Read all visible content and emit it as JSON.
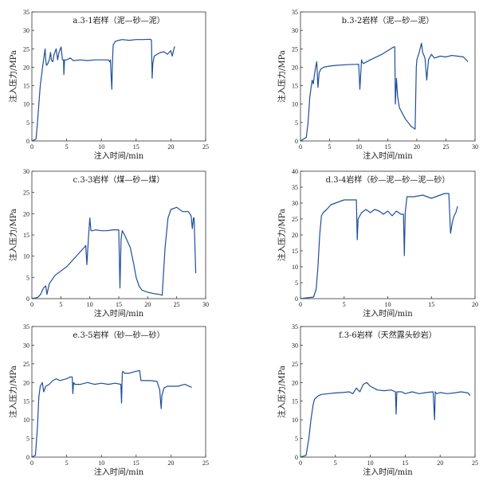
{
  "chart_data": [
    {
      "type": "line",
      "title": "a.3-1岩样（泥—砂—泥）",
      "xlabel": "注入时间/min",
      "ylabel": "注入压力/MPa",
      "xlim": [
        0,
        25
      ],
      "ylim": [
        0,
        35
      ],
      "xticks": [
        0,
        5,
        10,
        15,
        20,
        25
      ],
      "yticks": [
        0,
        5,
        10,
        15,
        20,
        25,
        30,
        35
      ],
      "series": [
        {
          "color": "#1f4e9a",
          "x": [
            0,
            0.6,
            0.8,
            1.2,
            1.6,
            1.9,
            2.0,
            2.1,
            2.3,
            2.5,
            2.7,
            2.8,
            3.0,
            3.2,
            3.5,
            3.7,
            3.9,
            4.2,
            4.4,
            4.55,
            4.6,
            4.7,
            5.0,
            5.5,
            6.0,
            7.0,
            8.0,
            9.0,
            10.0,
            11.0,
            11.2,
            11.3,
            11.5,
            11.6,
            11.7,
            12.0,
            12.5,
            13.0,
            14.0,
            15.0,
            16.0,
            17.0,
            17.2,
            17.3,
            17.4,
            17.6,
            18.0,
            18.5,
            19.0,
            19.5,
            20.0,
            20.2,
            20.5,
            20.6
          ],
          "y": [
            0,
            0.5,
            5,
            15,
            21,
            25,
            22,
            20.5,
            21,
            22,
            24,
            22,
            21.5,
            23.5,
            25,
            22,
            24,
            25.5,
            22,
            22,
            18,
            22,
            22,
            22.5,
            21.8,
            22,
            21.8,
            22,
            22,
            22,
            21.5,
            22,
            14,
            22,
            26,
            27,
            27.3,
            27.5,
            27.3,
            27.5,
            27.5,
            27.6,
            27.4,
            17,
            21,
            23,
            23.5,
            24,
            24.2,
            23.5,
            24.5,
            23,
            25.5,
            25.5
          ]
        }
      ]
    },
    {
      "type": "line",
      "title": "b.3-2岩样（泥—砂—泥）",
      "xlabel": "注入时间/min",
      "ylabel": "注入压力/MPa",
      "xlim": [
        0,
        30
      ],
      "ylim": [
        0,
        35
      ],
      "xticks": [
        0,
        5,
        10,
        15,
        20,
        25,
        30
      ],
      "yticks": [
        0,
        5,
        10,
        15,
        20,
        25,
        30,
        35
      ],
      "series": [
        {
          "color": "#1f4e9a",
          "x": [
            0,
            1.0,
            1.3,
            1.6,
            2.0,
            2.2,
            2.4,
            2.6,
            2.8,
            3.0,
            3.2,
            3.5,
            4.0,
            5.0,
            6.0,
            8.0,
            10.0,
            10.2,
            10.5,
            10.6,
            10.8,
            12.0,
            14.0,
            15.0,
            16.0,
            16.2,
            16.3,
            16.5,
            16.7,
            17.0,
            18.0,
            19.0,
            19.7,
            19.9,
            20.0,
            20.4,
            20.8,
            21.0,
            21.4,
            21.7,
            22.0,
            22.5,
            23.0,
            24.0,
            25.0,
            26.0,
            27.0,
            28.0,
            28.8
          ],
          "y": [
            0,
            1,
            5,
            12,
            16.5,
            15.5,
            18,
            20,
            21.5,
            14.5,
            18.5,
            19.5,
            20,
            20.3,
            20.5,
            20.7,
            20.8,
            14,
            22,
            21.5,
            21,
            22,
            23.5,
            24.5,
            25.5,
            25.5,
            10,
            17,
            12,
            9,
            6,
            4,
            3.2,
            20,
            22,
            24,
            26.5,
            24,
            22.5,
            16.5,
            22,
            23.5,
            22.5,
            23,
            22.8,
            23.2,
            23,
            22.8,
            21.5
          ]
        }
      ]
    },
    {
      "type": "line",
      "title": "c.3-3岩样（煤—砂—煤）",
      "xlabel": "注入时间/min",
      "ylabel": "注入压力/MPa",
      "xlim": [
        0,
        30
      ],
      "ylim": [
        0,
        30
      ],
      "xticks": [
        0,
        5,
        10,
        15,
        20,
        25,
        30
      ],
      "yticks": [
        0,
        5,
        10,
        15,
        20,
        25,
        30
      ],
      "series": [
        {
          "color": "#1f4e9a",
          "x": [
            0,
            1.0,
            1.5,
            2.0,
            2.4,
            2.6,
            3.0,
            4.0,
            5.0,
            6.0,
            7.0,
            8.0,
            9.0,
            9.3,
            9.5,
            9.8,
            10.0,
            10.2,
            10.5,
            11.0,
            12.0,
            13.0,
            14.0,
            15.0,
            15.2,
            15.4,
            15.6,
            16.0,
            17.0,
            17.6,
            18.0,
            18.5,
            19.0,
            20.0,
            21.0,
            22.0,
            22.5,
            23.0,
            23.5,
            24.0,
            25.0,
            26.0,
            27.0,
            27.5,
            27.7,
            27.9,
            28.0,
            28.3
          ],
          "y": [
            0,
            0.3,
            1,
            2.5,
            3,
            1,
            3.5,
            5.5,
            6.5,
            7.5,
            9,
            10.5,
            12,
            12.5,
            8,
            15,
            19,
            16,
            16,
            16.2,
            16,
            16,
            16.2,
            16.2,
            2.5,
            14,
            16,
            15,
            12,
            8,
            5,
            3,
            2,
            1.5,
            1.2,
            1,
            0.8,
            12,
            19,
            21,
            21.5,
            20.5,
            20.5,
            19.5,
            16.5,
            19,
            19,
            6
          ]
        }
      ]
    },
    {
      "type": "line",
      "title": "d.3-4岩样（砂—泥—砂—泥—砂）",
      "xlabel": "注入时间/min",
      "ylabel": "注入压力/MPa",
      "xlim": [
        0,
        20
      ],
      "ylim": [
        0,
        40
      ],
      "xticks": [
        0,
        5,
        10,
        15,
        20
      ],
      "yticks": [
        0,
        5,
        10,
        15,
        20,
        25,
        30,
        35,
        40
      ],
      "series": [
        {
          "color": "#1f4e9a",
          "x": [
            0,
            1.5,
            1.8,
            2.0,
            2.2,
            2.4,
            2.6,
            3.0,
            3.5,
            4.0,
            5.0,
            6.0,
            6.4,
            6.5,
            6.6,
            7.0,
            7.5,
            8.0,
            8.5,
            9.0,
            9.5,
            10.0,
            10.5,
            11.0,
            11.5,
            11.8,
            11.9,
            12.0,
            12.2,
            13.0,
            14.0,
            15.0,
            16.0,
            16.5,
            17.0,
            17.2,
            17.4,
            17.6,
            17.8,
            18.0
          ],
          "y": [
            0,
            0.5,
            3,
            10,
            20,
            26,
            27,
            28,
            29.5,
            30,
            31,
            31,
            31,
            18.5,
            25,
            27,
            28,
            27,
            28,
            27.5,
            26.5,
            27.5,
            26,
            27.5,
            26.5,
            26.5,
            13.5,
            27,
            32,
            32,
            32.5,
            31.5,
            32.5,
            33,
            33,
            20.5,
            24,
            26,
            27,
            29
          ]
        }
      ]
    },
    {
      "type": "line",
      "title": "e.3-5岩样（砂—砂—砂）",
      "xlabel": "注入时间/min",
      "ylabel": "注入压力/MPa",
      "xlim": [
        0,
        25
      ],
      "ylim": [
        0,
        35
      ],
      "xticks": [
        0,
        5,
        10,
        15,
        20,
        25
      ],
      "yticks": [
        0,
        5,
        10,
        15,
        20,
        25,
        30,
        35
      ],
      "series": [
        {
          "color": "#1f4e9a",
          "x": [
            0,
            0.5,
            0.8,
            1.0,
            1.2,
            1.5,
            1.7,
            2.0,
            2.5,
            3.0,
            3.5,
            4.0,
            5.0,
            5.5,
            5.8,
            5.9,
            6.0,
            6.2,
            7.0,
            8.0,
            9.0,
            10.0,
            11.0,
            12.0,
            12.8,
            12.9,
            13.0,
            13.1,
            13.3,
            14.0,
            15.0,
            15.5,
            15.7,
            16.0,
            17.0,
            18.0,
            18.4,
            18.6,
            18.7,
            19.0,
            19.5,
            20.0,
            21.0,
            22.0,
            23.0
          ],
          "y": [
            0,
            0.5,
            8,
            16,
            19,
            20,
            17.5,
            19,
            19.5,
            20.5,
            21,
            20.5,
            21,
            21.5,
            21.5,
            17,
            20,
            19.5,
            19.5,
            20,
            19.5,
            19.8,
            19.5,
            19.8,
            19.5,
            14.5,
            22.5,
            23,
            22.5,
            22.5,
            23,
            23.2,
            20.5,
            20.5,
            20.5,
            20.3,
            18,
            13,
            16.5,
            18.5,
            19,
            19,
            19,
            19.5,
            18.7
          ]
        }
      ]
    },
    {
      "type": "line",
      "title": "f.3-6岩样（天然露头砂岩）",
      "xlabel": "注入时间/min",
      "ylabel": "注入压力/MPa",
      "xlim": [
        0,
        25
      ],
      "ylim": [
        0,
        35
      ],
      "xticks": [
        0,
        5,
        10,
        15,
        20,
        25
      ],
      "yticks": [
        0,
        5,
        10,
        15,
        20,
        25,
        30,
        35
      ],
      "series": [
        {
          "color": "#1f4e9a",
          "x": [
            0,
            0.8,
            1.2,
            1.5,
            1.8,
            2.0,
            2.3,
            2.6,
            3.0,
            4.0,
            5.0,
            6.0,
            7.0,
            7.5,
            8.0,
            8.5,
            9.0,
            9.5,
            10.0,
            10.5,
            11.0,
            12.0,
            13.0,
            13.6,
            13.7,
            13.8,
            14.5,
            15.0,
            16.0,
            17.0,
            18.0,
            19.0,
            19.2,
            19.3,
            19.5,
            20.0,
            21.0,
            22.0,
            23.0,
            24.0,
            24.3
          ],
          "y": [
            0,
            0.5,
            5,
            10,
            14,
            15.5,
            16,
            16.5,
            16.8,
            17,
            17.2,
            17.3,
            17.5,
            17,
            18.5,
            17.5,
            19.5,
            20,
            19,
            18.5,
            18,
            17.8,
            18,
            17.5,
            11.5,
            17.5,
            17.5,
            17,
            17.5,
            17,
            17.3,
            17.5,
            10,
            17.5,
            17,
            17.3,
            17,
            17.2,
            17.5,
            17.2,
            16.5
          ]
        }
      ]
    }
  ]
}
